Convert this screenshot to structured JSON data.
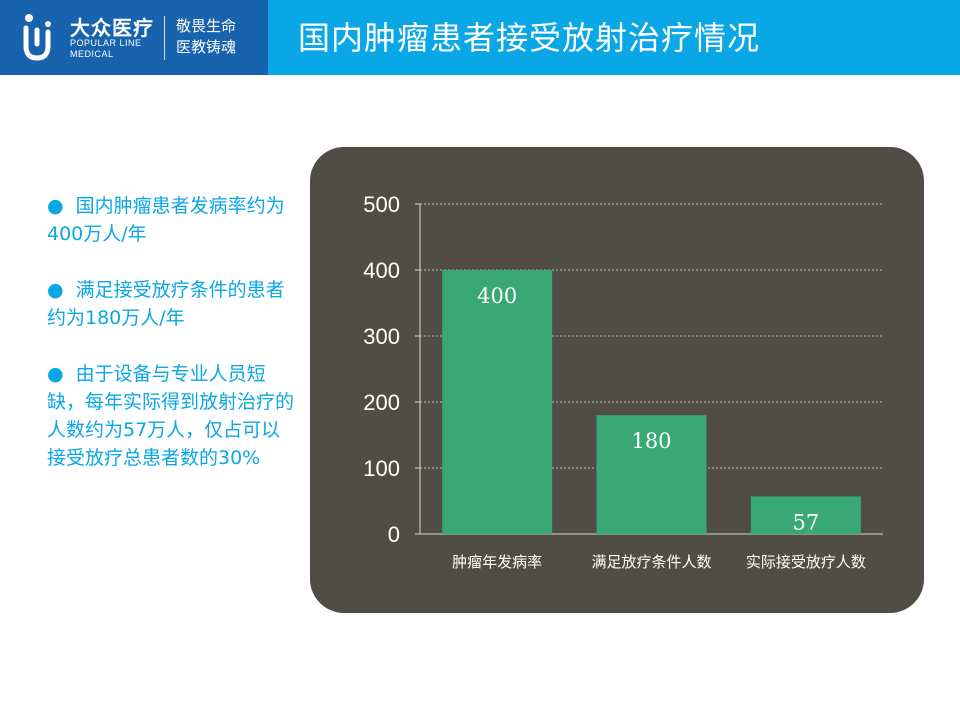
{
  "header": {
    "brand_name": "大众医疗",
    "brand_en_line1": "POPULAR LINE",
    "brand_en_line2": "MEDICAL",
    "slogan_line1": "敬畏生命",
    "slogan_line2": "医教铸魂",
    "title": "国内肿瘤患者接受放射治疗情况",
    "colors": {
      "bar": "#0aa7e6",
      "brand": "#1863ad"
    }
  },
  "bullets": [
    {
      "dot": "●",
      "text": "国内肿瘤患者发病率约为400万人/年"
    },
    {
      "dot": "●",
      "text": "满足接受放疗条件的患者约为180万人/年"
    },
    {
      "dot": "●",
      "text": "由于设备与专业人员短缺，每年实际得到放射治疗的人数约为57万人，仅占可以接受放疗总患者数的30%"
    }
  ],
  "chart_data": {
    "type": "bar",
    "title": "",
    "xlabel": "",
    "ylabel": "",
    "categories": [
      "肿瘤年发病率",
      "满足放疗条件人数",
      "实际接受放疗人数"
    ],
    "values": [
      400,
      180,
      57
    ],
    "data_labels": [
      "400",
      "180",
      "57"
    ],
    "ylim": [
      0,
      500
    ],
    "yticks": [
      "0",
      "100",
      "200",
      "300",
      "400",
      "500"
    ],
    "grid": true,
    "legend": "none",
    "bar_color": "#3aa874",
    "panel_color": "#4f4d46"
  }
}
